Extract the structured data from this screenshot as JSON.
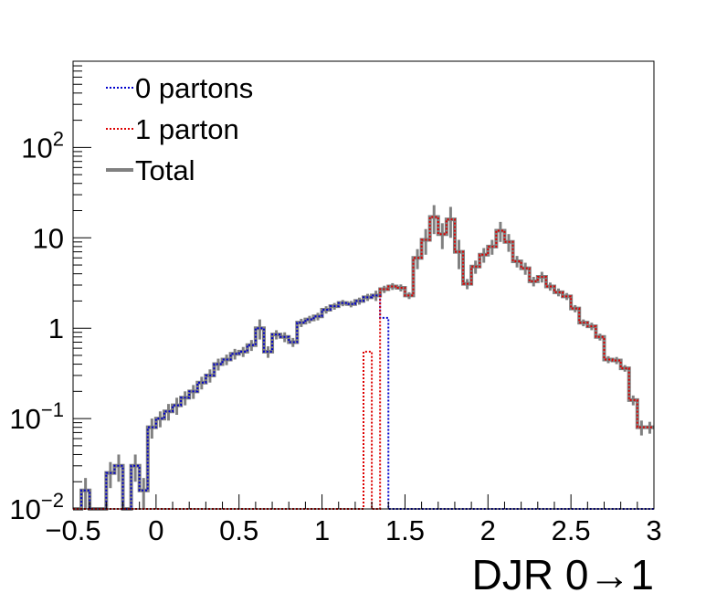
{
  "chart_data": {
    "type": "line",
    "xlabel": "DJR 0→1",
    "ylabel": "",
    "xlim": [
      -0.5,
      3
    ],
    "ylim": [
      0.01,
      900
    ],
    "yscale": "log",
    "grid": false,
    "legend_position": "top-left",
    "x_ticks": [
      "−0.5",
      "0",
      "0.5",
      "1",
      "1.5",
      "2",
      "2.5",
      "3"
    ],
    "y_ticks": [
      {
        "value": 0.01,
        "base": "10",
        "exp": "−2"
      },
      {
        "value": 0.1,
        "base": "10",
        "exp": "−1"
      },
      {
        "value": 1,
        "base": "1",
        "exp": ""
      },
      {
        "value": 10,
        "base": "10",
        "exp": ""
      },
      {
        "value": 100,
        "base": "10",
        "exp": "2"
      }
    ],
    "bin_edges": [
      -0.5,
      -0.45,
      -0.4,
      -0.35,
      -0.3,
      -0.25,
      -0.2,
      -0.15,
      -0.1,
      -0.05,
      0.0,
      0.05,
      0.1,
      0.15,
      0.2,
      0.25,
      0.3,
      0.35,
      0.4,
      0.45,
      0.5,
      0.55,
      0.6,
      0.65,
      0.7,
      0.75,
      0.8,
      0.85,
      0.9,
      0.95,
      1.0,
      1.05,
      1.1,
      1.15,
      1.2,
      1.25,
      1.3,
      1.35,
      1.4,
      1.45,
      1.5,
      1.55,
      1.6,
      1.65,
      1.7,
      1.75,
      1.8,
      1.85,
      1.9,
      1.95,
      2.0,
      2.05,
      2.1,
      2.15,
      2.2,
      2.25,
      2.3,
      2.35,
      2.4,
      2.45,
      2.5,
      2.55,
      2.6,
      2.65,
      2.7,
      2.75,
      2.8,
      2.85,
      2.9,
      2.95,
      3.0
    ],
    "series": [
      {
        "name": "0 partons",
        "color": "#0000cc",
        "style": "dotted",
        "values": [
          0.01,
          0.016,
          0.01,
          0.01,
          0.025,
          0.03,
          0.01,
          0.03,
          0.016,
          0.08,
          0.1,
          0.12,
          0.14,
          0.17,
          0.2,
          0.25,
          0.3,
          0.4,
          0.45,
          0.52,
          0.55,
          0.65,
          1.0,
          0.55,
          0.85,
          0.8,
          0.7,
          1.15,
          1.25,
          1.35,
          1.6,
          1.75,
          1.9,
          1.85,
          2.0,
          2.2,
          2.3,
          1.3,
          0.01,
          0.01,
          0.01,
          0.01,
          0.01,
          0.01,
          0.01,
          0.01,
          0.01,
          0.01,
          0.01,
          0.01,
          0.01,
          0.01,
          0.01,
          0.01,
          0.01,
          0.01,
          0.01,
          0.01,
          0.01,
          0.01,
          0.01,
          0.01,
          0.01,
          0.01,
          0.01,
          0.01,
          0.01,
          0.01,
          0.01,
          0.01
        ]
      },
      {
        "name": "1 parton",
        "color": "#dd0000",
        "style": "dotted",
        "values": [
          0.01,
          0.01,
          0.01,
          0.01,
          0.01,
          0.01,
          0.01,
          0.01,
          0.01,
          0.01,
          0.01,
          0.01,
          0.01,
          0.01,
          0.01,
          0.01,
          0.01,
          0.01,
          0.01,
          0.01,
          0.01,
          0.01,
          0.01,
          0.01,
          0.01,
          0.01,
          0.01,
          0.01,
          0.01,
          0.01,
          0.01,
          0.01,
          0.01,
          0.01,
          0.01,
          0.55,
          0.01,
          2.7,
          2.9,
          2.8,
          2.3,
          6.0,
          9.5,
          17.0,
          11.0,
          16.0,
          7.0,
          3.1,
          4.8,
          6.5,
          8.0,
          12.0,
          9.0,
          5.5,
          4.6,
          3.3,
          3.7,
          2.9,
          2.5,
          2.25,
          1.65,
          1.15,
          1.05,
          0.8,
          0.45,
          0.44,
          0.36,
          0.16,
          0.08,
          0.08
        ]
      },
      {
        "name": "Total",
        "color": "#808080",
        "style": "solid",
        "values": [
          0.01,
          0.016,
          0.01,
          0.01,
          0.025,
          0.03,
          0.01,
          0.03,
          0.016,
          0.08,
          0.1,
          0.12,
          0.14,
          0.17,
          0.2,
          0.25,
          0.3,
          0.4,
          0.45,
          0.52,
          0.55,
          0.65,
          1.0,
          0.55,
          0.85,
          0.8,
          0.7,
          1.15,
          1.25,
          1.35,
          1.6,
          1.75,
          1.9,
          1.85,
          2.0,
          2.2,
          2.3,
          2.7,
          2.9,
          2.8,
          2.3,
          6.0,
          9.5,
          17.0,
          11.0,
          16.0,
          7.0,
          3.1,
          4.8,
          6.5,
          8.0,
          12.0,
          9.0,
          5.5,
          4.6,
          3.3,
          3.7,
          2.9,
          2.5,
          2.25,
          1.65,
          1.15,
          1.05,
          0.8,
          0.45,
          0.44,
          0.36,
          0.16,
          0.08,
          0.08
        ],
        "errors": [
          0,
          0.006,
          0,
          0,
          0.008,
          0.01,
          0,
          0.01,
          0.006,
          0.02,
          0.02,
          0.025,
          0.03,
          0.03,
          0.035,
          0.04,
          0.05,
          0.06,
          0.06,
          0.07,
          0.07,
          0.09,
          0.25,
          0.08,
          0.1,
          0.1,
          0.08,
          0.12,
          0.12,
          0.13,
          0.15,
          0.15,
          0.15,
          0.15,
          0.18,
          0.2,
          0.3,
          0.25,
          0.25,
          0.25,
          0.2,
          1.5,
          3.0,
          6.0,
          3.5,
          6.0,
          2.5,
          0.4,
          0.8,
          1.2,
          1.5,
          3.0,
          2.0,
          0.8,
          0.7,
          0.4,
          0.5,
          0.3,
          0.25,
          0.2,
          0.15,
          0.1,
          0.1,
          0.07,
          0.04,
          0.04,
          0.03,
          0.02,
          0.015,
          0.012
        ]
      }
    ]
  }
}
